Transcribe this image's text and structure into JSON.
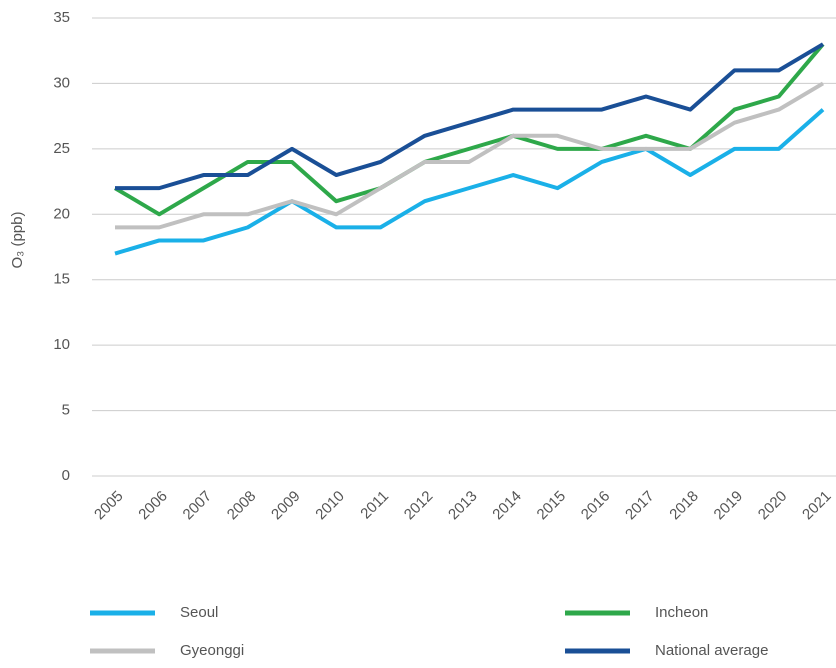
{
  "chart_data": {
    "type": "line",
    "y_label": "O₃ (ppb)",
    "categories": [
      "2005",
      "2006",
      "2007",
      "2008",
      "2009",
      "2010",
      "2011",
      "2012",
      "2013",
      "2014",
      "2015",
      "2016",
      "2017",
      "2018",
      "2019",
      "2020",
      "2021"
    ],
    "series": [
      {
        "name": "Seoul",
        "color": "#1ab0e8",
        "values": [
          17,
          18,
          18,
          19,
          21,
          19,
          19,
          21,
          22,
          23,
          22,
          24,
          25,
          23,
          25,
          25,
          28
        ]
      },
      {
        "name": "Incheon",
        "color": "#2ea84a",
        "values": [
          22,
          20,
          22,
          24,
          24,
          21,
          22,
          24,
          25,
          26,
          25,
          25,
          26,
          25,
          28,
          29,
          33
        ]
      },
      {
        "name": "Gyeonggi",
        "color": "#c0c0c0",
        "values": [
          19,
          19,
          20,
          20,
          21,
          20,
          22,
          24,
          24,
          26,
          26,
          25,
          25,
          25,
          27,
          28,
          30
        ]
      },
      {
        "name": "National average",
        "color": "#1a4f96",
        "values": [
          22,
          22,
          23,
          23,
          25,
          23,
          24,
          26,
          27,
          28,
          28,
          28,
          29,
          28,
          31,
          31,
          33
        ]
      }
    ],
    "ylim": [
      0,
      35
    ],
    "yticks": [
      0,
      5,
      10,
      15,
      20,
      25,
      30,
      35
    ],
    "grid": true
  }
}
